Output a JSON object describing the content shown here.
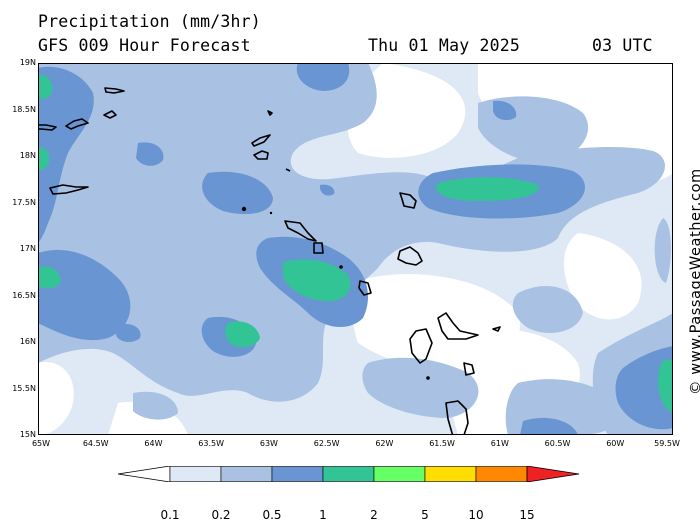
{
  "header": {
    "title": "Precipitation (mm/3hr)",
    "model": "GFS 009 Hour Forecast",
    "date": "Thu 01 May 2025",
    "time": "03 UTC"
  },
  "watermark": "© www.PassageWeather.com",
  "axes": {
    "lat_labels": [
      "19N",
      "18.5N",
      "18N",
      "17.5N",
      "17N",
      "16.5N",
      "16N",
      "15.5N",
      "15N"
    ],
    "lon_labels": [
      "65W",
      "64.5W",
      "64W",
      "63.5W",
      "63W",
      "62.5W",
      "62W",
      "61.5W",
      "61W",
      "60.5W",
      "60W",
      "59.5W"
    ]
  },
  "colorbar": {
    "labels": [
      "0.1",
      "0.2",
      "0.5",
      "1",
      "2",
      "5",
      "10",
      "15"
    ],
    "colors": [
      "#ffffff",
      "#dfe8f5",
      "#a9c1e3",
      "#6a95d3",
      "#33c495",
      "#66ff66",
      "#ffdd00",
      "#ff8800",
      "#ee2222"
    ]
  },
  "map": {
    "levels": {
      "light": "#dfe8f5",
      "medium": "#a9c1e3",
      "blue": "#6a95d3",
      "green": "#33c495"
    },
    "coastline_color": "#000000"
  }
}
